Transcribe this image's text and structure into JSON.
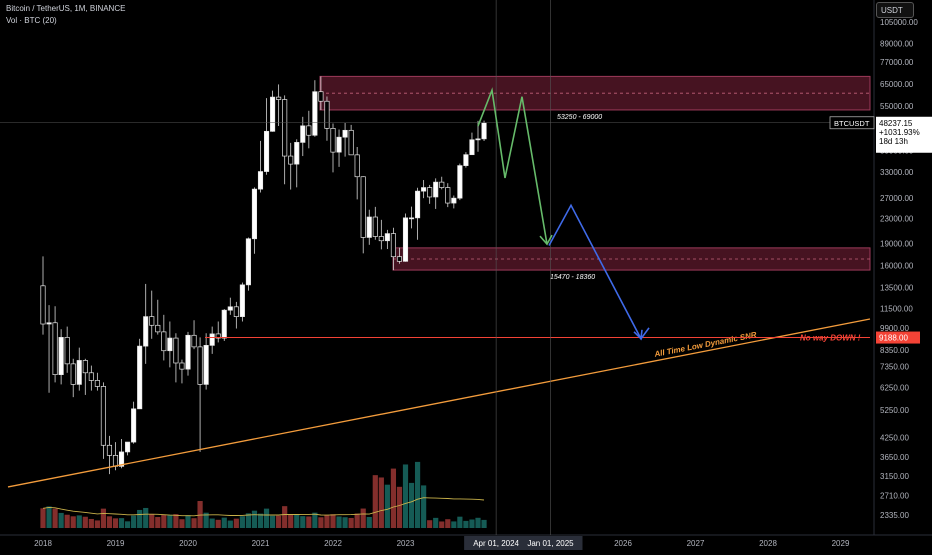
{
  "header": {
    "symbol_line": "Bitcoin / TetherUS, 1M, BINANCE",
    "volume_line": "Vol · BTC (20)"
  },
  "currency_button": "USDT",
  "colors": {
    "bull": "#ffffff",
    "bear": "#000000",
    "vol_up": "#26a69a",
    "vol_down": "#ef5350",
    "zone_fill": "#5d1a2c",
    "green_path": "#66bb6a",
    "blue_path": "#3f6ae8",
    "trendline": "#f39c3c",
    "support_line": "#f44336",
    "label_red": "#f44336"
  },
  "chart_data": {
    "type": "candlestick",
    "scale": "log",
    "price_ticks": [
      "105000.00",
      "89000.00",
      "77000.00",
      "65000.00",
      "55000.00",
      "47000.00",
      "39000.00",
      "33000.00",
      "27000.00",
      "23000.00",
      "19000.00",
      "16000.00",
      "13500.00",
      "11500.00",
      "9900.00",
      "8350.00",
      "7350.00",
      "6250.00",
      "5250.00",
      "4250.00",
      "3650.00",
      "3150.00",
      "2710.00",
      "2335.00"
    ],
    "time_ticks": [
      "2018",
      "2019",
      "2020",
      "2021",
      "2022",
      "2023",
      "2026",
      "2027",
      "2028",
      "2029"
    ],
    "time_highlights": [
      "Apr 01, 2024",
      "Jan 01, 2025"
    ],
    "last_price": {
      "symbol": "BTCUSDT",
      "price": "48237.15",
      "change": "+1031.93%",
      "countdown": "18d 13h"
    },
    "support_price_label": "9188.00",
    "zones": [
      {
        "label": "53250 - 69000",
        "low": 53250,
        "high": 69000
      },
      {
        "label": "15470 - 18360",
        "low": 15470,
        "high": 18360
      }
    ],
    "annotations": {
      "trendline_label": "All Time Low Dynamic SNR",
      "no_way_down": "No way DOWN !"
    },
    "candles": [
      {
        "t": "2018-01",
        "o": 13700,
        "h": 17200,
        "l": 9400,
        "c": 10200
      },
      {
        "t": "2018-02",
        "o": 10200,
        "h": 11800,
        "l": 6000,
        "c": 10300
      },
      {
        "t": "2018-03",
        "o": 10300,
        "h": 11700,
        "l": 6500,
        "c": 6900
      },
      {
        "t": "2018-04",
        "o": 6900,
        "h": 9800,
        "l": 6400,
        "c": 9200
      },
      {
        "t": "2018-05",
        "o": 9200,
        "h": 10000,
        "l": 7000,
        "c": 7500
      },
      {
        "t": "2018-06",
        "o": 7500,
        "h": 7800,
        "l": 5800,
        "c": 6400
      },
      {
        "t": "2018-07",
        "o": 6400,
        "h": 8500,
        "l": 6100,
        "c": 7700
      },
      {
        "t": "2018-08",
        "o": 7700,
        "h": 7800,
        "l": 5900,
        "c": 7000
      },
      {
        "t": "2018-09",
        "o": 7000,
        "h": 7400,
        "l": 6100,
        "c": 6600
      },
      {
        "t": "2018-10",
        "o": 6600,
        "h": 7000,
        "l": 6100,
        "c": 6300
      },
      {
        "t": "2018-11",
        "o": 6300,
        "h": 6500,
        "l": 3600,
        "c": 4000
      },
      {
        "t": "2018-12",
        "o": 4000,
        "h": 4300,
        "l": 3200,
        "c": 3700
      },
      {
        "t": "2019-01",
        "o": 3700,
        "h": 4100,
        "l": 3300,
        "c": 3400
      },
      {
        "t": "2019-02",
        "o": 3400,
        "h": 4200,
        "l": 3350,
        "c": 3800
      },
      {
        "t": "2019-03",
        "o": 3800,
        "h": 4100,
        "l": 3700,
        "c": 4100
      },
      {
        "t": "2019-04",
        "o": 4100,
        "h": 5600,
        "l": 4050,
        "c": 5300
      },
      {
        "t": "2019-05",
        "o": 5300,
        "h": 9100,
        "l": 5300,
        "c": 8600
      },
      {
        "t": "2019-06",
        "o": 8600,
        "h": 13900,
        "l": 7500,
        "c": 10800
      },
      {
        "t": "2019-07",
        "o": 10800,
        "h": 13200,
        "l": 9100,
        "c": 10100
      },
      {
        "t": "2019-08",
        "o": 10100,
        "h": 12300,
        "l": 9400,
        "c": 9600
      },
      {
        "t": "2019-09",
        "o": 9600,
        "h": 10950,
        "l": 7700,
        "c": 8300
      },
      {
        "t": "2019-10",
        "o": 8300,
        "h": 10400,
        "l": 7300,
        "c": 9150
      },
      {
        "t": "2019-11",
        "o": 9150,
        "h": 9500,
        "l": 6500,
        "c": 7550
      },
      {
        "t": "2019-12",
        "o": 7550,
        "h": 7750,
        "l": 6450,
        "c": 7200
      },
      {
        "t": "2020-01",
        "o": 7200,
        "h": 9600,
        "l": 6850,
        "c": 9350
      },
      {
        "t": "2020-02",
        "o": 9350,
        "h": 10500,
        "l": 8400,
        "c": 8550
      },
      {
        "t": "2020-03",
        "o": 8550,
        "h": 9200,
        "l": 3800,
        "c": 6400
      },
      {
        "t": "2020-04",
        "o": 6400,
        "h": 9500,
        "l": 6150,
        "c": 8650
      },
      {
        "t": "2020-05",
        "o": 8650,
        "h": 10000,
        "l": 8100,
        "c": 9450
      },
      {
        "t": "2020-06",
        "o": 9450,
        "h": 10400,
        "l": 8850,
        "c": 9150
      },
      {
        "t": "2020-07",
        "o": 9150,
        "h": 11450,
        "l": 8950,
        "c": 11350
      },
      {
        "t": "2020-08",
        "o": 11350,
        "h": 12500,
        "l": 10950,
        "c": 11650
      },
      {
        "t": "2020-09",
        "o": 11650,
        "h": 12100,
        "l": 9850,
        "c": 10800
      },
      {
        "t": "2020-10",
        "o": 10800,
        "h": 14050,
        "l": 10400,
        "c": 13800
      },
      {
        "t": "2020-11",
        "o": 13800,
        "h": 19900,
        "l": 13200,
        "c": 19700
      },
      {
        "t": "2020-12",
        "o": 19700,
        "h": 29300,
        "l": 17550,
        "c": 28900
      },
      {
        "t": "2021-01",
        "o": 28900,
        "h": 41950,
        "l": 28150,
        "c": 33100
      },
      {
        "t": "2021-02",
        "o": 33100,
        "h": 58350,
        "l": 32300,
        "c": 45150
      },
      {
        "t": "2021-03",
        "o": 45150,
        "h": 61800,
        "l": 45000,
        "c": 58800
      },
      {
        "t": "2021-04",
        "o": 58800,
        "h": 64850,
        "l": 47050,
        "c": 57700
      },
      {
        "t": "2021-05",
        "o": 57700,
        "h": 59600,
        "l": 30000,
        "c": 37300
      },
      {
        "t": "2021-06",
        "o": 37300,
        "h": 41300,
        "l": 28800,
        "c": 35050
      },
      {
        "t": "2021-07",
        "o": 35050,
        "h": 42450,
        "l": 29300,
        "c": 41450
      },
      {
        "t": "2021-08",
        "o": 41450,
        "h": 50500,
        "l": 37300,
        "c": 47100
      },
      {
        "t": "2021-09",
        "o": 47100,
        "h": 52900,
        "l": 39600,
        "c": 43800
      },
      {
        "t": "2021-10",
        "o": 43800,
        "h": 67000,
        "l": 43300,
        "c": 61300
      },
      {
        "t": "2021-11",
        "o": 61300,
        "h": 69000,
        "l": 53250,
        "c": 56950
      },
      {
        "t": "2021-12",
        "o": 56950,
        "h": 59100,
        "l": 42000,
        "c": 46200
      },
      {
        "t": "2022-01",
        "o": 46200,
        "h": 47950,
        "l": 32900,
        "c": 38450
      },
      {
        "t": "2022-02",
        "o": 38450,
        "h": 45800,
        "l": 34300,
        "c": 43150
      },
      {
        "t": "2022-03",
        "o": 43150,
        "h": 48200,
        "l": 37150,
        "c": 45500
      },
      {
        "t": "2022-04",
        "o": 45500,
        "h": 47450,
        "l": 37600,
        "c": 37650
      },
      {
        "t": "2022-05",
        "o": 37650,
        "h": 40000,
        "l": 26700,
        "c": 31800
      },
      {
        "t": "2022-06",
        "o": 31800,
        "h": 31900,
        "l": 17600,
        "c": 19900
      },
      {
        "t": "2022-07",
        "o": 19900,
        "h": 24650,
        "l": 18800,
        "c": 23300
      },
      {
        "t": "2022-08",
        "o": 23300,
        "h": 25200,
        "l": 19550,
        "c": 20050
      },
      {
        "t": "2022-09",
        "o": 20050,
        "h": 22800,
        "l": 18150,
        "c": 19400
      },
      {
        "t": "2022-10",
        "o": 19400,
        "h": 21100,
        "l": 18200,
        "c": 20500
      },
      {
        "t": "2022-11",
        "o": 20500,
        "h": 21450,
        "l": 15470,
        "c": 17150
      },
      {
        "t": "2022-12",
        "o": 17150,
        "h": 18400,
        "l": 16250,
        "c": 16550
      },
      {
        "t": "2023-01",
        "o": 16550,
        "h": 23950,
        "l": 16500,
        "c": 23150
      },
      {
        "t": "2023-02",
        "o": 23150,
        "h": 25250,
        "l": 21350,
        "c": 23150
      },
      {
        "t": "2023-03",
        "o": 23150,
        "h": 29200,
        "l": 19550,
        "c": 28450
      },
      {
        "t": "2023-04",
        "o": 28450,
        "h": 31000,
        "l": 26950,
        "c": 29250
      },
      {
        "t": "2023-05",
        "o": 29250,
        "h": 29850,
        "l": 25800,
        "c": 27200
      },
      {
        "t": "2023-06",
        "o": 27200,
        "h": 31400,
        "l": 24800,
        "c": 30500
      },
      {
        "t": "2023-07",
        "o": 30500,
        "h": 31800,
        "l": 28850,
        "c": 29250
      },
      {
        "t": "2023-08",
        "o": 29250,
        "h": 30250,
        "l": 25150,
        "c": 25950
      },
      {
        "t": "2023-09",
        "o": 25950,
        "h": 27500,
        "l": 24900,
        "c": 26950
      },
      {
        "t": "2023-10",
        "o": 26950,
        "h": 35200,
        "l": 26550,
        "c": 34650
      },
      {
        "t": "2023-11",
        "o": 34650,
        "h": 38450,
        "l": 34100,
        "c": 37700
      },
      {
        "t": "2023-12",
        "o": 37700,
        "h": 44700,
        "l": 37600,
        "c": 42300
      },
      {
        "t": "2024-01",
        "o": 42300,
        "h": 48950,
        "l": 38550,
        "c": 42600
      },
      {
        "t": "2024-02",
        "o": 42600,
        "h": 49050,
        "l": 41900,
        "c": 48237
      }
    ],
    "volume_ma_label": "Vol MA 20"
  }
}
